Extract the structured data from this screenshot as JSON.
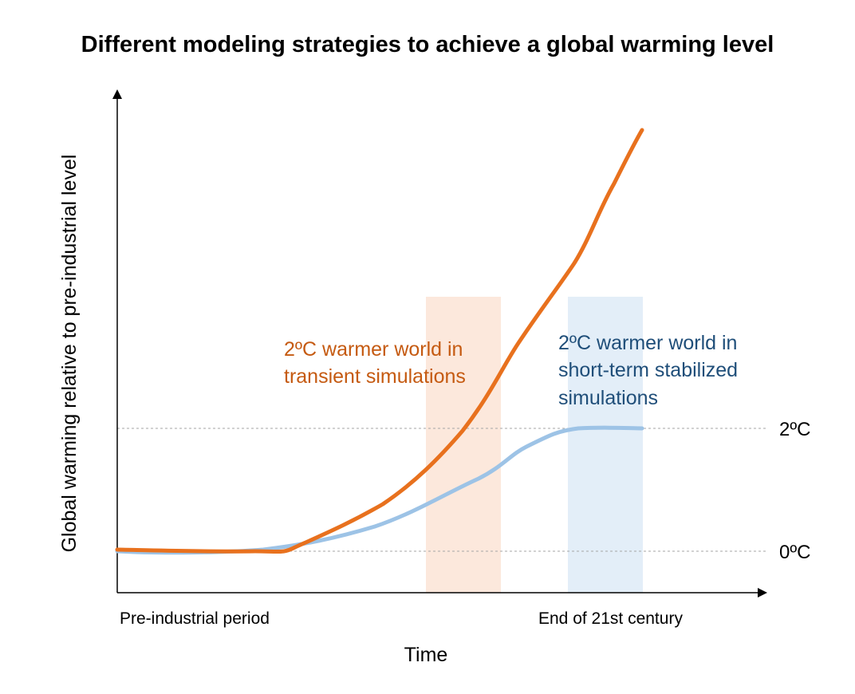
{
  "title": "Different modeling strategies to achieve a global warming level",
  "y_axis_label": "Global warming relative to pre-industrial level",
  "x_axis_label": "Time",
  "x_tick_labels": {
    "start": "Pre-industrial period",
    "end": "End of 21st century"
  },
  "levels": {
    "zero": "0ºC",
    "two": "2ºC"
  },
  "annotations": {
    "transient": [
      "2ºC warmer world in",
      "transient simulations"
    ],
    "stabilized": [
      "2ºC warmer world in",
      "short-term stabilized",
      "simulations"
    ]
  },
  "colors": {
    "transient_line": "#E8711E",
    "transient_text": "#C55A11",
    "stabilized_line": "#9DC3E6",
    "stabilized_text": "#1F4E79",
    "transient_band": "#FCE4D6",
    "stabilized_band": "#DEEBF7",
    "reference_line": "#A6A6A6"
  }
}
